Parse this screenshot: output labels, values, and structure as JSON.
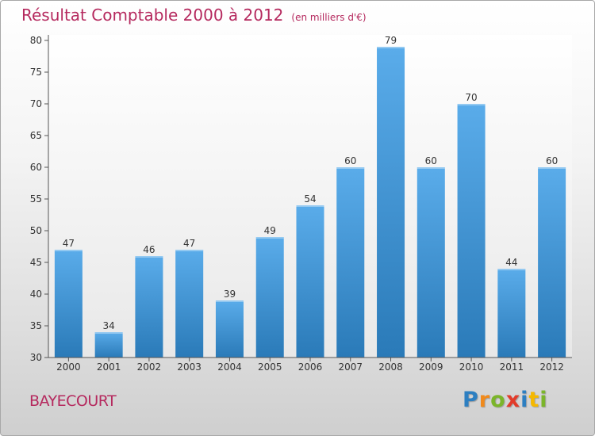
{
  "chart_data": {
    "type": "bar",
    "title": "Résultat Comptable 2000 à 2012",
    "subtitle": "(en milliers d'€)",
    "categories": [
      "2000",
      "2001",
      "2002",
      "2003",
      "2004",
      "2005",
      "2006",
      "2007",
      "2008",
      "2009",
      "2010",
      "2011",
      "2012"
    ],
    "values": [
      47,
      34,
      46,
      47,
      39,
      49,
      54,
      60,
      79,
      60,
      70,
      44,
      60
    ],
    "xlabel": "",
    "ylabel": "",
    "ylim": [
      30,
      80
    ],
    "yticks": [
      "30",
      "35",
      "40",
      "45",
      "50",
      "55",
      "60",
      "65",
      "70",
      "75",
      "80"
    ],
    "grid": false,
    "colors": {
      "bar_top": "#5aacea",
      "bar_bottom": "#2a7ab8",
      "text_accent": "#b5295e"
    }
  },
  "footer": {
    "commune": "BAYECOURT",
    "logo_letters": [
      {
        "ch": "P",
        "color": "#2d7fc1"
      },
      {
        "ch": "r",
        "color": "#f08a1c"
      },
      {
        "ch": "o",
        "color": "#7bb52a"
      },
      {
        "ch": "x",
        "color": "#e23b2a"
      },
      {
        "ch": "i",
        "color": "#2d7fc1"
      },
      {
        "ch": "t",
        "color": "#f5b800"
      },
      {
        "ch": "i",
        "color": "#7bb52a"
      }
    ]
  }
}
